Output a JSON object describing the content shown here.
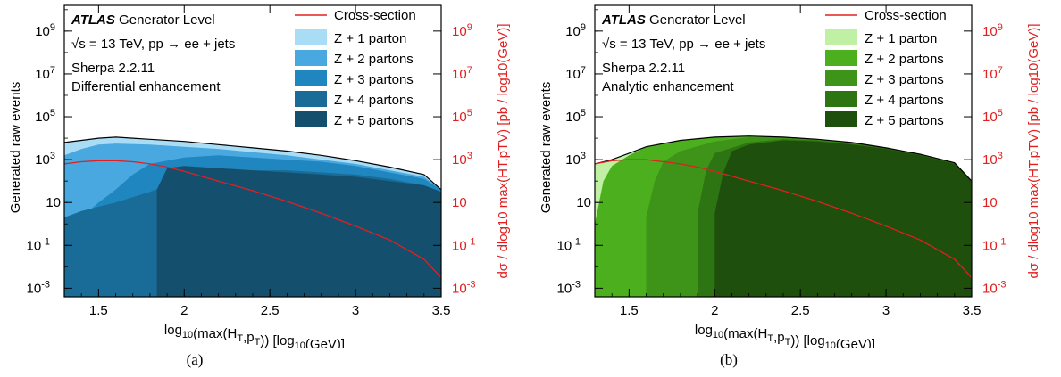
{
  "chart_data": [
    {
      "type": "area",
      "subplot_label": "(a)",
      "annotations": {
        "experiment": "ATLAS",
        "experiment_suffix": "Generator Level",
        "energy": "√s = 13 TeV, pp →  ee + jets",
        "generator": "Sherpa 2.2.11",
        "method": "Differential enhancement"
      },
      "xlabel": "log10(max(HT,pTV)) [log10(GeV)]",
      "ylabel_left": "Generated raw events",
      "ylabel_right": "dσ / dlog10 max(HT,pTV) [pb / log10(GeV)]",
      "xlim": [
        1.3,
        3.5
      ],
      "ylim_log10": [
        -3.4,
        10.2
      ],
      "xticks": [
        "1.5",
        "2",
        "2.5",
        "3",
        "3.5"
      ],
      "yticks": [
        {
          "text": "10",
          "sup": "-3",
          "log": -3
        },
        {
          "text": "10",
          "sup": "-1",
          "log": -1
        },
        {
          "text": "10",
          "sup": "",
          "log": 1
        },
        {
          "text": "10",
          "sup": "3",
          "log": 3
        },
        {
          "text": "10",
          "sup": "5",
          "log": 5
        },
        {
          "text": "10",
          "sup": "7",
          "log": 7
        },
        {
          "text": "10",
          "sup": "9",
          "log": 9
        }
      ],
      "legend_position": "top-right",
      "legend_line": "Cross-section",
      "series": [
        {
          "name": "Z + 5 partons",
          "color": "#14506e",
          "x": [
            1.84,
            1.9,
            2.0,
            2.2,
            2.4,
            2.6,
            2.8,
            3.0,
            3.2,
            3.4,
            3.5
          ],
          "log_values": [
            1.6,
            2.6,
            2.7,
            2.6,
            2.5,
            2.4,
            2.3,
            2.2,
            2.0,
            1.8,
            1.5
          ]
        },
        {
          "name": "Z + 4 partons",
          "color": "#1a6c98",
          "x": [
            1.3,
            1.4,
            1.6,
            1.8,
            2.0,
            2.2,
            2.4,
            2.6,
            2.8,
            3.0,
            3.2,
            3.4,
            3.5
          ],
          "log_values": [
            0.3,
            0.6,
            1.0,
            1.5,
            2.1,
            2.4,
            2.5,
            2.5,
            2.4,
            2.3,
            2.1,
            1.8,
            1.5
          ]
        },
        {
          "name": "Z + 3 partons",
          "color": "#1f86bf",
          "x": [
            1.3,
            1.4,
            1.5,
            1.6,
            1.7,
            1.8,
            2.0,
            2.2,
            2.4,
            2.6,
            2.8,
            3.0,
            3.2,
            3.4,
            3.5
          ],
          "log_values": [
            -0.3,
            0.3,
            1.0,
            1.6,
            2.3,
            2.8,
            3.1,
            3.2,
            3.1,
            3.0,
            2.9,
            2.7,
            2.4,
            2.1,
            1.6
          ]
        },
        {
          "name": "Z + 2 partons",
          "color": "#49a8df",
          "x": [
            1.3,
            1.4,
            1.5,
            1.6,
            1.8,
            2.0,
            2.2,
            2.4,
            2.6,
            2.8,
            3.0,
            3.2,
            3.4,
            3.5
          ],
          "log_values": [
            3.2,
            3.5,
            3.7,
            3.75,
            3.7,
            3.6,
            3.5,
            3.35,
            3.2,
            3.0,
            2.8,
            2.5,
            2.2,
            1.6
          ]
        },
        {
          "name": "Z + 1 parton",
          "color": "#a9dcf5",
          "x": [
            1.3,
            1.4,
            1.5,
            1.6,
            1.7,
            1.8,
            2.0,
            2.2,
            2.4,
            2.6,
            2.8,
            3.0,
            3.2,
            3.4,
            3.5
          ],
          "log_values": [
            3.8,
            3.9,
            4.0,
            4.05,
            4.0,
            3.95,
            3.85,
            3.7,
            3.55,
            3.4,
            3.2,
            2.95,
            2.65,
            2.3,
            1.6
          ]
        }
      ],
      "cross_section": {
        "x": [
          1.3,
          1.4,
          1.5,
          1.6,
          1.7,
          1.8,
          1.9,
          2.0,
          2.2,
          2.4,
          2.6,
          2.8,
          3.0,
          3.2,
          3.4,
          3.5
        ],
        "log_values": [
          2.8,
          2.9,
          2.95,
          2.95,
          2.9,
          2.8,
          2.65,
          2.45,
          2.0,
          1.55,
          1.05,
          0.5,
          -0.1,
          -0.75,
          -1.65,
          -2.5
        ]
      }
    },
    {
      "type": "area",
      "subplot_label": "(b)",
      "annotations": {
        "experiment": "ATLAS",
        "experiment_suffix": "Generator Level",
        "energy": "√s = 13 TeV, pp →  ee + jets",
        "generator": "Sherpa 2.2.11",
        "method": "Analytic enhancement"
      },
      "xlabel": "log10(max(HT,pTV)) [log10(GeV)]",
      "ylabel_left": "Generated raw events",
      "ylabel_right": "dσ / dlog10 max(HT,pTV) [pb / log10(GeV)]",
      "xlim": [
        1.3,
        3.5
      ],
      "ylim_log10": [
        -3.4,
        10.2
      ],
      "xticks": [
        "1.5",
        "2",
        "2.5",
        "3",
        "3.5"
      ],
      "yticks": [
        {
          "text": "10",
          "sup": "-3",
          "log": -3
        },
        {
          "text": "10",
          "sup": "-1",
          "log": -1
        },
        {
          "text": "10",
          "sup": "",
          "log": 1
        },
        {
          "text": "10",
          "sup": "3",
          "log": 3
        },
        {
          "text": "10",
          "sup": "5",
          "log": 5
        },
        {
          "text": "10",
          "sup": "7",
          "log": 7
        },
        {
          "text": "10",
          "sup": "9",
          "log": 9
        }
      ],
      "legend_position": "top-right",
      "legend_line": "Cross-section",
      "series": [
        {
          "name": "Z + 5 partons",
          "color": "#1f4f0c",
          "x": [
            2.0,
            2.05,
            2.1,
            2.2,
            2.4,
            2.6,
            2.8,
            3.0,
            3.2,
            3.4,
            3.5
          ],
          "log_values": [
            0.5,
            2.4,
            3.4,
            3.7,
            3.9,
            3.85,
            3.7,
            3.5,
            3.2,
            2.8,
            2.0
          ]
        },
        {
          "name": "Z + 4 partons",
          "color": "#2d7412",
          "x": [
            1.9,
            1.95,
            2.0,
            2.2,
            2.4,
            2.6,
            2.8,
            3.0,
            3.2,
            3.4,
            3.5
          ],
          "log_values": [
            0.5,
            2.5,
            3.3,
            3.8,
            3.95,
            3.9,
            3.75,
            3.55,
            3.25,
            2.85,
            2.0
          ]
        },
        {
          "name": "Z + 3 partons",
          "color": "#3d9418",
          "x": [
            1.6,
            1.65,
            1.7,
            1.8,
            2.0,
            2.2,
            2.4,
            2.6,
            2.8,
            3.0,
            3.2,
            3.4,
            3.5
          ],
          "log_values": [
            0.3,
            2.0,
            2.9,
            3.4,
            3.85,
            4.05,
            4.05,
            3.95,
            3.8,
            3.55,
            3.25,
            2.85,
            2.0
          ]
        },
        {
          "name": "Z + 2 partons",
          "color": "#4caf1e",
          "x": [
            1.3,
            1.35,
            1.4,
            1.5,
            1.6,
            1.8,
            2.0,
            2.2,
            2.4,
            2.6,
            2.8,
            3.0,
            3.2,
            3.4,
            3.5
          ],
          "log_values": [
            0.0,
            2.0,
            2.7,
            3.2,
            3.6,
            3.9,
            4.05,
            4.1,
            4.05,
            3.95,
            3.8,
            3.55,
            3.25,
            2.85,
            2.0
          ]
        },
        {
          "name": "Z + 1 parton",
          "color": "#bff0a3",
          "x": [
            1.3,
            1.4,
            1.5,
            1.6,
            1.8,
            2.0,
            2.2,
            2.4,
            2.6,
            2.8,
            3.0,
            3.2,
            3.4,
            3.5
          ],
          "log_values": [
            2.8,
            3.0,
            3.3,
            3.6,
            3.9,
            4.05,
            4.1,
            4.05,
            3.95,
            3.8,
            3.55,
            3.25,
            2.85,
            2.0
          ]
        }
      ],
      "cross_section": {
        "x": [
          1.3,
          1.4,
          1.5,
          1.6,
          1.7,
          1.8,
          1.9,
          2.0,
          2.2,
          2.4,
          2.6,
          2.8,
          3.0,
          3.2,
          3.4,
          3.5
        ],
        "log_values": [
          2.8,
          2.95,
          3.0,
          3.0,
          2.9,
          2.8,
          2.65,
          2.45,
          2.0,
          1.55,
          1.05,
          0.5,
          -0.1,
          -0.75,
          -1.65,
          -2.5
        ]
      }
    }
  ]
}
